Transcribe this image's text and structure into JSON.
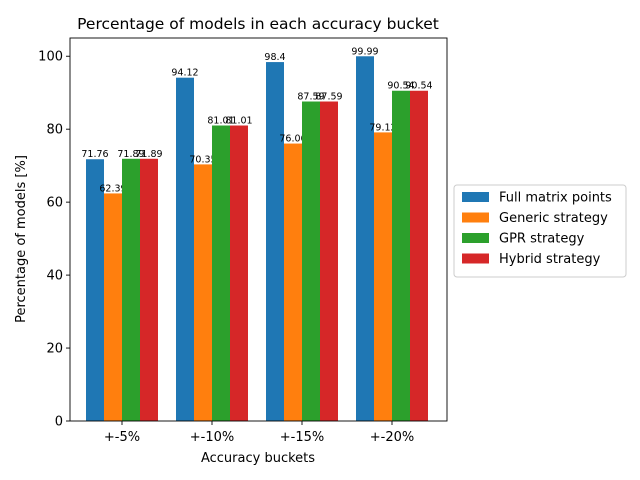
{
  "chart_data": {
    "type": "bar",
    "title": "Percentage of models in each accuracy bucket",
    "xlabel": "Accuracy buckets",
    "ylabel": "Percentage of models [%]",
    "categories": [
      "+-5%",
      "+-10%",
      "+-15%",
      "+-20%"
    ],
    "ylim": [
      0,
      105
    ],
    "yticks": [
      0,
      20,
      40,
      60,
      80,
      100
    ],
    "grid": false,
    "legend_position": "right",
    "series": [
      {
        "name": "Full matrix points",
        "color": "#1f77b4",
        "values": [
          71.76,
          94.12,
          98.4,
          99.99
        ],
        "labels": [
          "71.76",
          "94.12",
          "98.4",
          "99.99"
        ]
      },
      {
        "name": "Generic strategy",
        "color": "#ff7f0e",
        "values": [
          62.39,
          70.35,
          76.06,
          79.12
        ],
        "labels": [
          "62.39",
          "70.35",
          "76.06",
          "79.12"
        ]
      },
      {
        "name": "GPR strategy",
        "color": "#2ca02c",
        "values": [
          71.89,
          81.01,
          87.59,
          90.54
        ],
        "labels": [
          "71.89",
          "81.01",
          "87.59",
          "90.54"
        ]
      },
      {
        "name": "Hybrid strategy",
        "color": "#d62728",
        "values": [
          71.89,
          81.01,
          87.59,
          90.54
        ],
        "labels": [
          "71.89",
          "81.01",
          "87.59",
          "90.54"
        ]
      }
    ]
  }
}
